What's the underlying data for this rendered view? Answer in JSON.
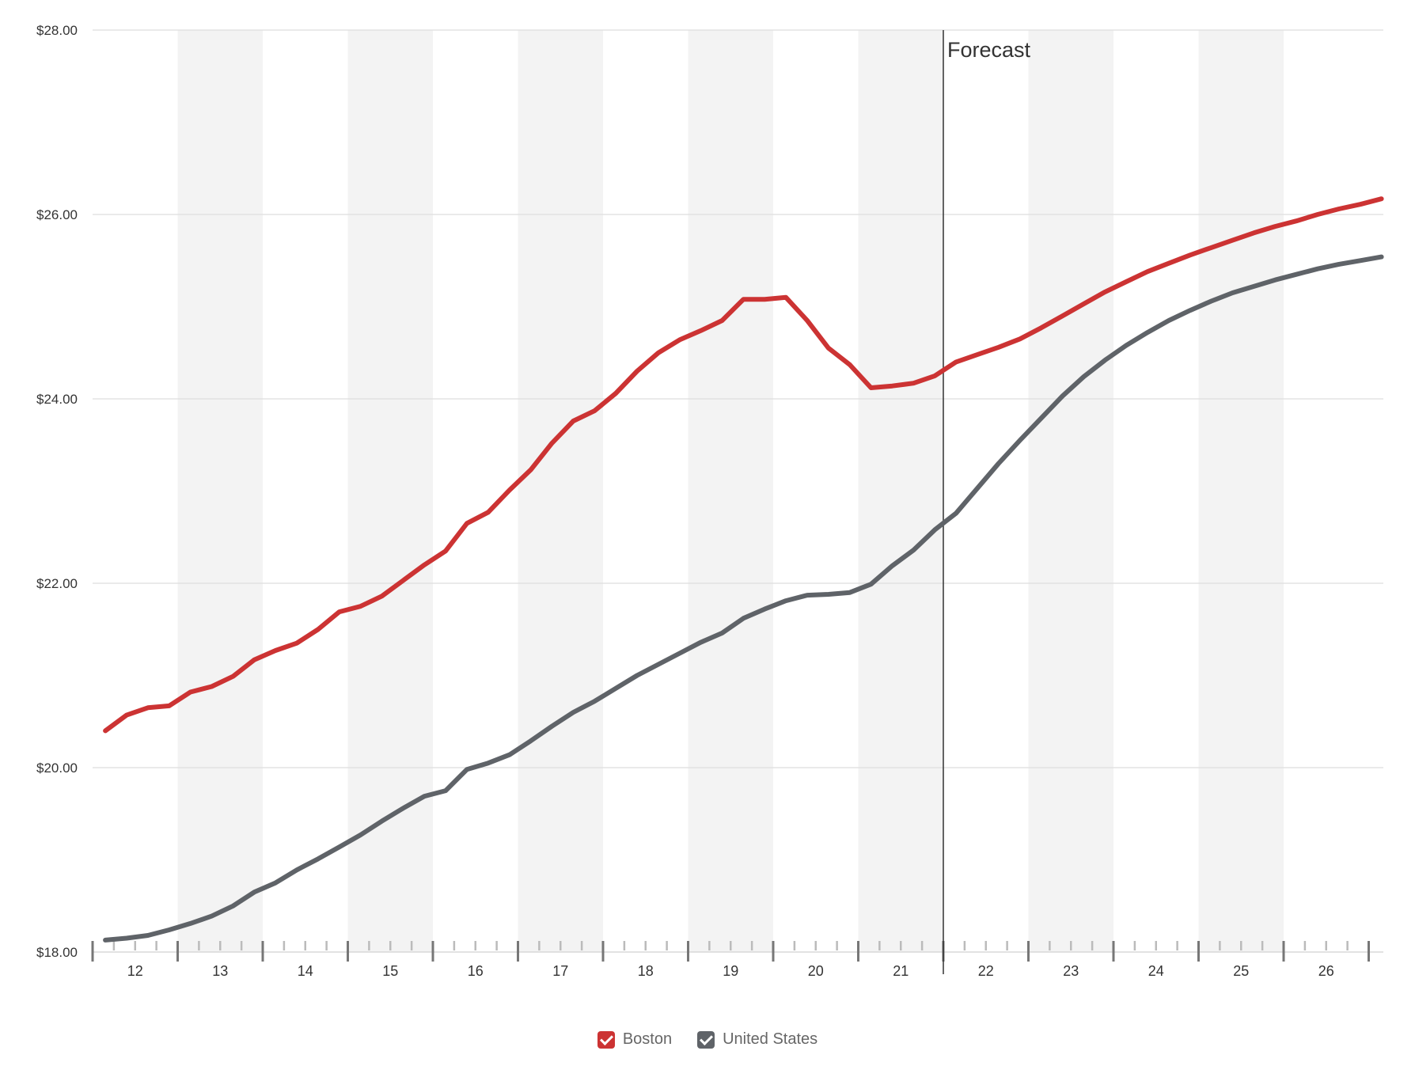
{
  "chart_data": {
    "type": "line",
    "title": "",
    "xlabel": "",
    "ylabel": "",
    "ylim": [
      18,
      28
    ],
    "y_ticks": [
      "$18.00",
      "$20.00",
      "$22.00",
      "$24.00",
      "$26.00",
      "$28.00"
    ],
    "x_tick_labels": [
      "12",
      "13",
      "14",
      "15",
      "16",
      "17",
      "18",
      "19",
      "20",
      "21",
      "22",
      "23",
      "24",
      "25",
      "26"
    ],
    "quarters_per_year": 4,
    "first_point": "12 Q1",
    "annotation": {
      "label": "Forecast",
      "at": "22 Q1"
    },
    "grid": true,
    "legend_position": "bottom",
    "series": [
      {
        "name": "Boston",
        "color": "#cc3333",
        "values": [
          20.4,
          20.57,
          20.65,
          20.67,
          20.82,
          20.88,
          20.99,
          21.17,
          21.27,
          21.35,
          21.5,
          21.69,
          21.75,
          21.86,
          22.03,
          22.2,
          22.35,
          22.65,
          22.77,
          23.01,
          23.23,
          23.52,
          23.76,
          23.87,
          24.06,
          24.3,
          24.5,
          24.64,
          24.74,
          24.85,
          25.08,
          25.08,
          25.1,
          24.85,
          24.55,
          24.37,
          24.12,
          24.14,
          24.17,
          24.25,
          24.4,
          24.48,
          24.56,
          24.65,
          24.77,
          24.9,
          25.03,
          25.16,
          25.27,
          25.38,
          25.47,
          25.56,
          25.64,
          25.72,
          25.8,
          25.87,
          25.93,
          26.0,
          26.06,
          26.11,
          26.17
        ]
      },
      {
        "name": "United States",
        "color": "#5f6368",
        "values": [
          18.13,
          18.15,
          18.18,
          18.24,
          18.31,
          18.39,
          18.5,
          18.65,
          18.75,
          18.89,
          19.01,
          19.14,
          19.27,
          19.42,
          19.56,
          19.69,
          19.75,
          19.98,
          20.05,
          20.14,
          20.29,
          20.45,
          20.6,
          20.72,
          20.86,
          21.0,
          21.12,
          21.24,
          21.36,
          21.46,
          21.62,
          21.72,
          21.81,
          21.87,
          21.88,
          21.9,
          21.99,
          22.19,
          22.36,
          22.58,
          22.76,
          23.03,
          23.3,
          23.55,
          23.79,
          24.03,
          24.24,
          24.42,
          24.58,
          24.72,
          24.85,
          24.96,
          25.06,
          25.15,
          25.22,
          25.29,
          25.35,
          25.41,
          25.46,
          25.5,
          25.54
        ]
      }
    ]
  }
}
